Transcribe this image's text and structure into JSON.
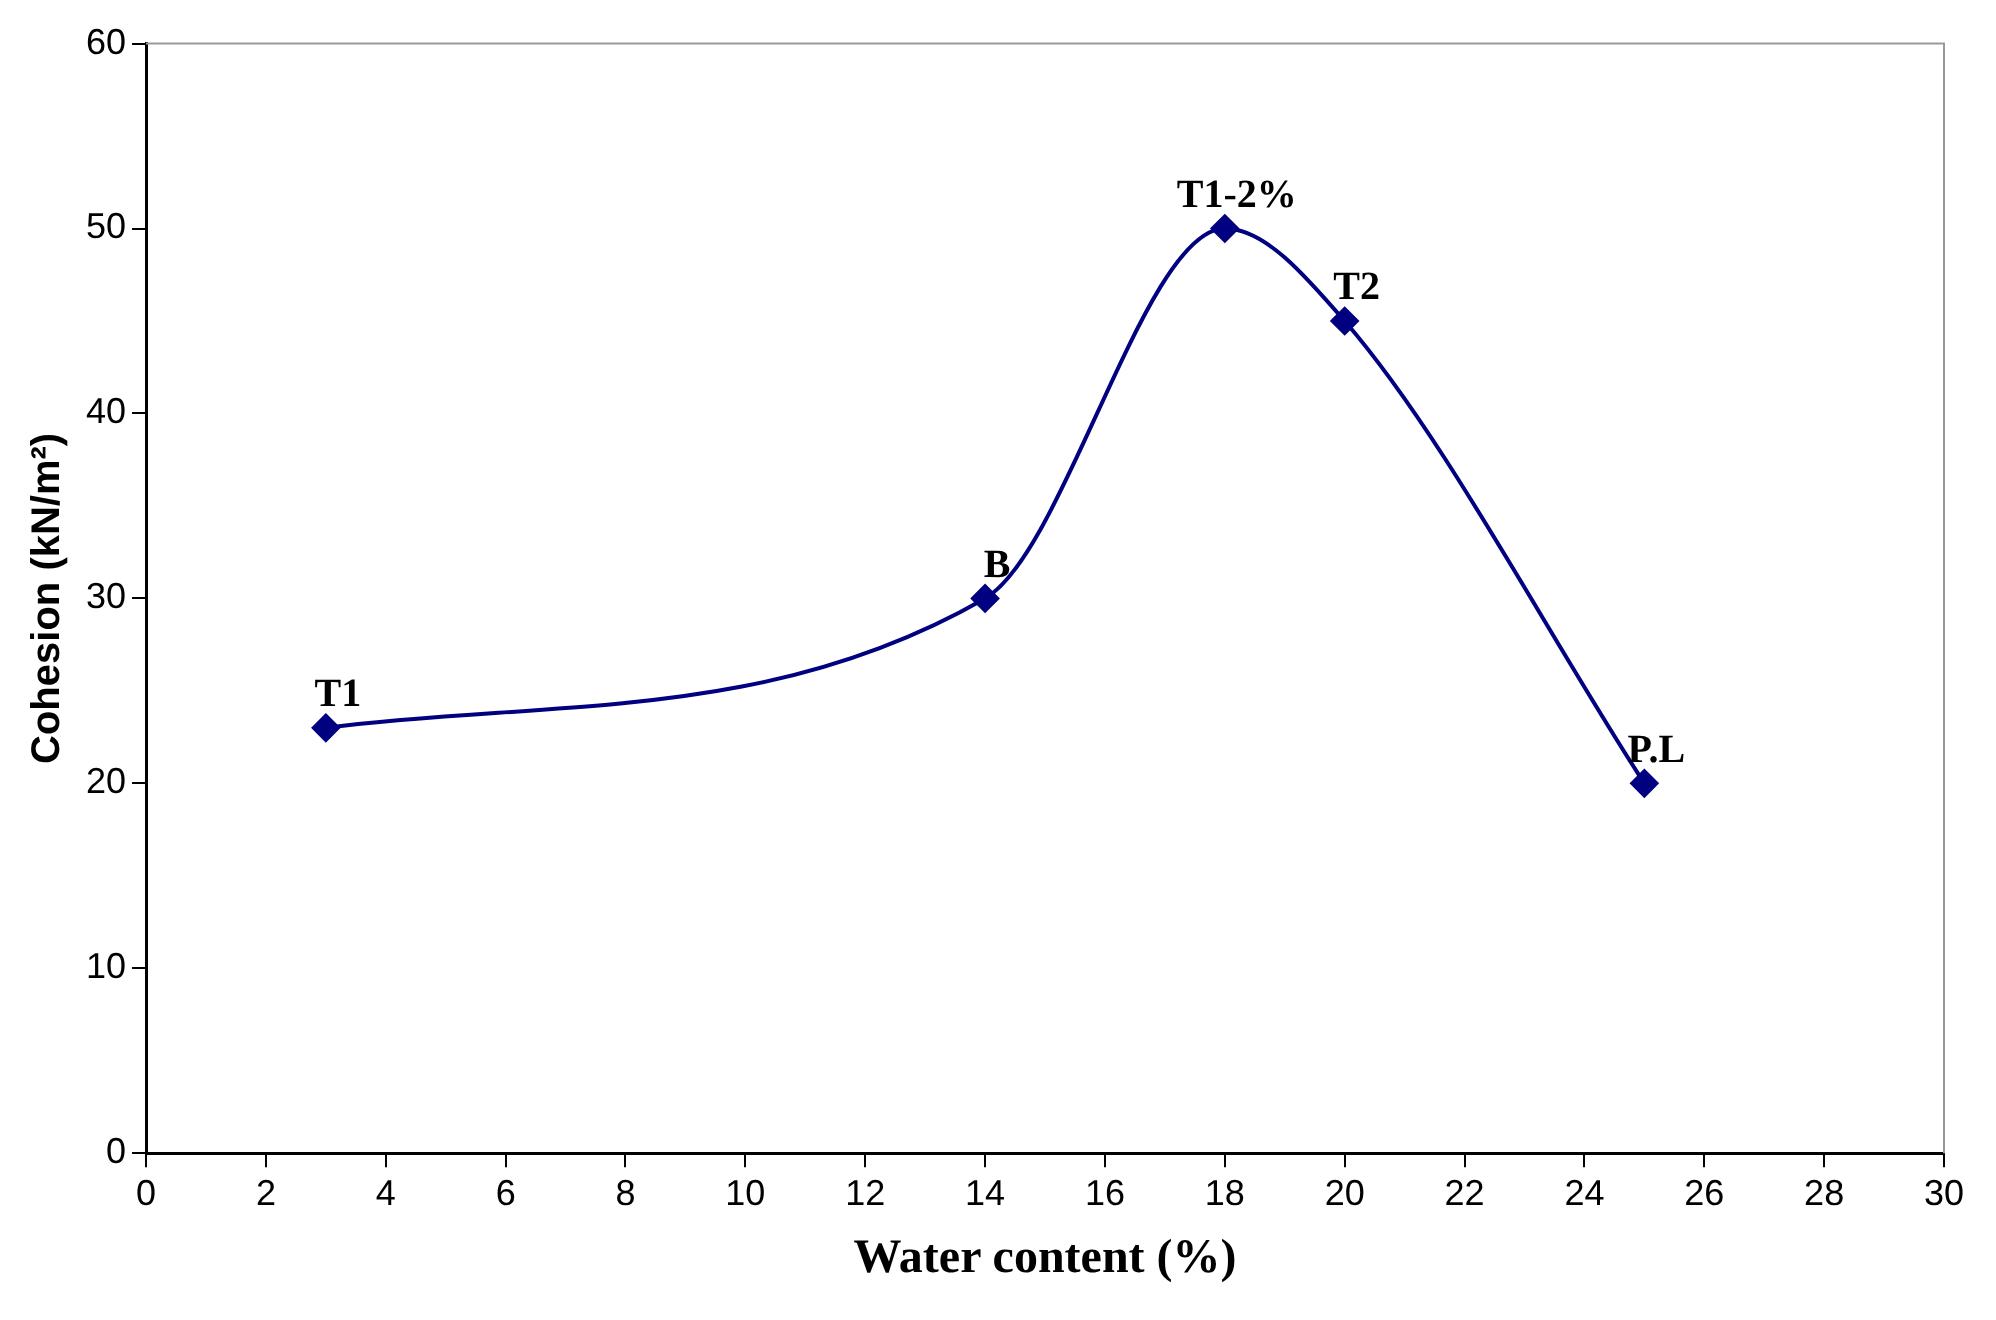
{
  "chart_data": {
    "type": "line",
    "xlabel": "Water content (%)",
    "ylabel": "Cohesion (kN/m²)",
    "x": [
      3,
      14,
      18,
      20,
      25
    ],
    "series": [
      {
        "color": "#000080",
        "values": [
          23,
          30,
          50,
          45,
          20
        ]
      }
    ],
    "xlim": [
      0,
      30
    ],
    "xticks": [
      0,
      2,
      4,
      6,
      8,
      10,
      12,
      14,
      16,
      18,
      20,
      22,
      24,
      26,
      28,
      30
    ],
    "ylim": [
      0,
      60
    ],
    "yticks": [
      0,
      10,
      20,
      30,
      40,
      50,
      60
    ],
    "marker": "diamond",
    "line_style": "solid",
    "legend": false,
    "annotations": [
      {
        "text": "T1",
        "x": 3,
        "y": 23
      },
      {
        "text": "B",
        "x": 14,
        "y": 30
      },
      {
        "text": "T1-2%",
        "x": 18,
        "y": 50
      },
      {
        "text": "T2",
        "x": 20,
        "y": 45
      },
      {
        "text": "P.L",
        "x": 25,
        "y": 20
      }
    ]
  }
}
